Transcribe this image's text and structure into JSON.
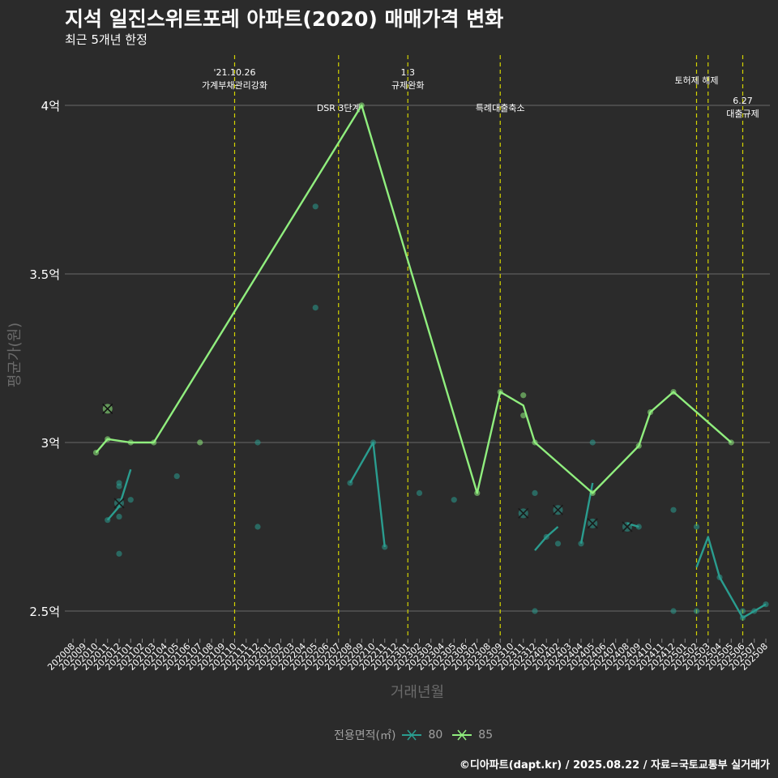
{
  "chart_data": {
    "type": "line",
    "title": "지석 일진스위트포레 아파트(2020) 매매가격 변화",
    "subtitle": "최근 5개년 한정",
    "xlabel": "거래년월",
    "ylabel": "평균가(원)",
    "ylim": [
      2.42,
      4.15
    ],
    "yticks": [
      {
        "value": 2.5,
        "label": "2.5억"
      },
      {
        "value": 3.0,
        "label": "3억"
      },
      {
        "value": 3.5,
        "label": "3.5억"
      },
      {
        "value": 4.0,
        "label": "4억"
      }
    ],
    "x_categories": [
      "202008",
      "202009",
      "202010",
      "202011",
      "202012",
      "202101",
      "202102",
      "202103",
      "202104",
      "202105",
      "202106",
      "202107",
      "202108",
      "202109",
      "202110",
      "202111",
      "202112",
      "202201",
      "202202",
      "202203",
      "202204",
      "202205",
      "202206",
      "202207",
      "202208",
      "202209",
      "202210",
      "202211",
      "202212",
      "202301",
      "202302",
      "202303",
      "202304",
      "202305",
      "202306",
      "202307",
      "202308",
      "202309",
      "202310",
      "202311",
      "202312",
      "202401",
      "202402",
      "202403",
      "202404",
      "202405",
      "202406",
      "202407",
      "202408",
      "202409",
      "202410",
      "202411",
      "202412",
      "202501",
      "202502",
      "202503",
      "202504",
      "202505",
      "202506",
      "202507",
      "202508"
    ],
    "grid": true,
    "legend": {
      "title": "전용면적(㎡)",
      "position": "bottom"
    },
    "series": [
      {
        "name": "80",
        "color": "#2a9d8f",
        "line_segments": [
          [
            [
              "202011",
              2.77
            ],
            [
              "202012",
              2.81
            ],
            [
              "202101",
              2.92
            ]
          ],
          [
            [
              "202208",
              2.88
            ],
            [
              "202210",
              3.0
            ],
            [
              "202211",
              2.69
            ]
          ],
          [
            [
              "202312",
              2.68
            ],
            [
              "202401",
              2.72
            ],
            [
              "202402",
              2.75
            ]
          ],
          [
            [
              "202404",
              2.7
            ],
            [
              "202405",
              2.88
            ]
          ],
          [
            [
              "202408",
              2.76
            ],
            [
              "202409",
              2.75
            ]
          ],
          [
            [
              "202502",
              2.63
            ],
            [
              "202503",
              2.72
            ],
            [
              "202504",
              2.6
            ],
            [
              "202506",
              2.48
            ],
            [
              "202507",
              2.5
            ],
            [
              "202508",
              2.52
            ]
          ]
        ],
        "points": [
          [
            "202011",
            2.77
          ],
          [
            "202012",
            2.88
          ],
          [
            "202012",
            2.87
          ],
          [
            "202012",
            2.78
          ],
          [
            "202012",
            2.67
          ],
          [
            "202101",
            2.83
          ],
          [
            "202105",
            2.9
          ],
          [
            "202112",
            3.0
          ],
          [
            "202112",
            2.75
          ],
          [
            "202205",
            3.7
          ],
          [
            "202205",
            3.4
          ],
          [
            "202208",
            2.88
          ],
          [
            "202210",
            3.0
          ],
          [
            "202211",
            2.69
          ],
          [
            "202302",
            2.85
          ],
          [
            "202305",
            2.83
          ],
          [
            "202312",
            2.85
          ],
          [
            "202312",
            2.5
          ],
          [
            "202401",
            2.72
          ],
          [
            "202402",
            2.7
          ],
          [
            "202404",
            2.7
          ],
          [
            "202405",
            3.0
          ],
          [
            "202409",
            2.75
          ],
          [
            "202412",
            2.8
          ],
          [
            "202412",
            2.5
          ],
          [
            "202502",
            2.75
          ],
          [
            "202502",
            2.5
          ],
          [
            "202504",
            2.6
          ],
          [
            "202506",
            2.5
          ],
          [
            "202506",
            2.48
          ],
          [
            "202507",
            2.5
          ],
          [
            "202508",
            2.52
          ]
        ],
        "cross_marks": [
          [
            "202012",
            2.82
          ],
          [
            "202311",
            2.79
          ],
          [
            "202402",
            2.8
          ],
          [
            "202405",
            2.76
          ],
          [
            "202408",
            2.75
          ]
        ]
      },
      {
        "name": "85",
        "color": "#90ee7e",
        "line_segments": [
          [
            [
              "202010",
              2.97
            ],
            [
              "202011",
              3.01
            ],
            [
              "202101",
              3.0
            ],
            [
              "202103",
              3.0
            ],
            [
              "202209",
              4.0
            ],
            [
              "202307",
              2.85
            ],
            [
              "202309",
              3.15
            ],
            [
              "202311",
              3.11
            ],
            [
              "202312",
              3.0
            ],
            [
              "202405",
              2.85
            ],
            [
              "202409",
              2.99
            ],
            [
              "202410",
              3.09
            ],
            [
              "202412",
              3.15
            ],
            [
              "202505",
              3.0
            ]
          ]
        ],
        "points": [
          [
            "202010",
            2.97
          ],
          [
            "202011",
            3.01
          ],
          [
            "202101",
            3.0
          ],
          [
            "202103",
            3.0
          ],
          [
            "202107",
            3.0
          ],
          [
            "202209",
            4.0
          ],
          [
            "202307",
            2.85
          ],
          [
            "202309",
            3.15
          ],
          [
            "202311",
            3.14
          ],
          [
            "202311",
            3.08
          ],
          [
            "202312",
            3.0
          ],
          [
            "202405",
            2.85
          ],
          [
            "202409",
            2.99
          ],
          [
            "202410",
            3.09
          ],
          [
            "202412",
            3.15
          ],
          [
            "202505",
            3.0
          ]
        ],
        "cross_marks": [
          [
            "202011",
            3.1
          ]
        ]
      }
    ],
    "annotations": [
      {
        "x": "202110",
        "lines": [
          "'21.10.26",
          "가계부채관리강화"
        ],
        "level": "top"
      },
      {
        "x": "202207",
        "lines": [
          "DSR 3단계"
        ],
        "level": "low"
      },
      {
        "x": "202301",
        "lines": [
          "1.3",
          "규제완화"
        ],
        "level": "top"
      },
      {
        "x": "202309",
        "lines": [
          "특례대출축소"
        ],
        "level": "low"
      },
      {
        "x": "202502",
        "lines": [
          "토허제 해제"
        ],
        "level": "mid"
      },
      {
        "x": "202503",
        "lines": [],
        "level": "none"
      },
      {
        "x": "202506",
        "lines": [
          "6.27",
          "대출규제"
        ],
        "level": "lower"
      }
    ],
    "caption": "©디아파트(dapt.kr) / 2025.08.22 / 자료=국토교통부 실거래가"
  }
}
